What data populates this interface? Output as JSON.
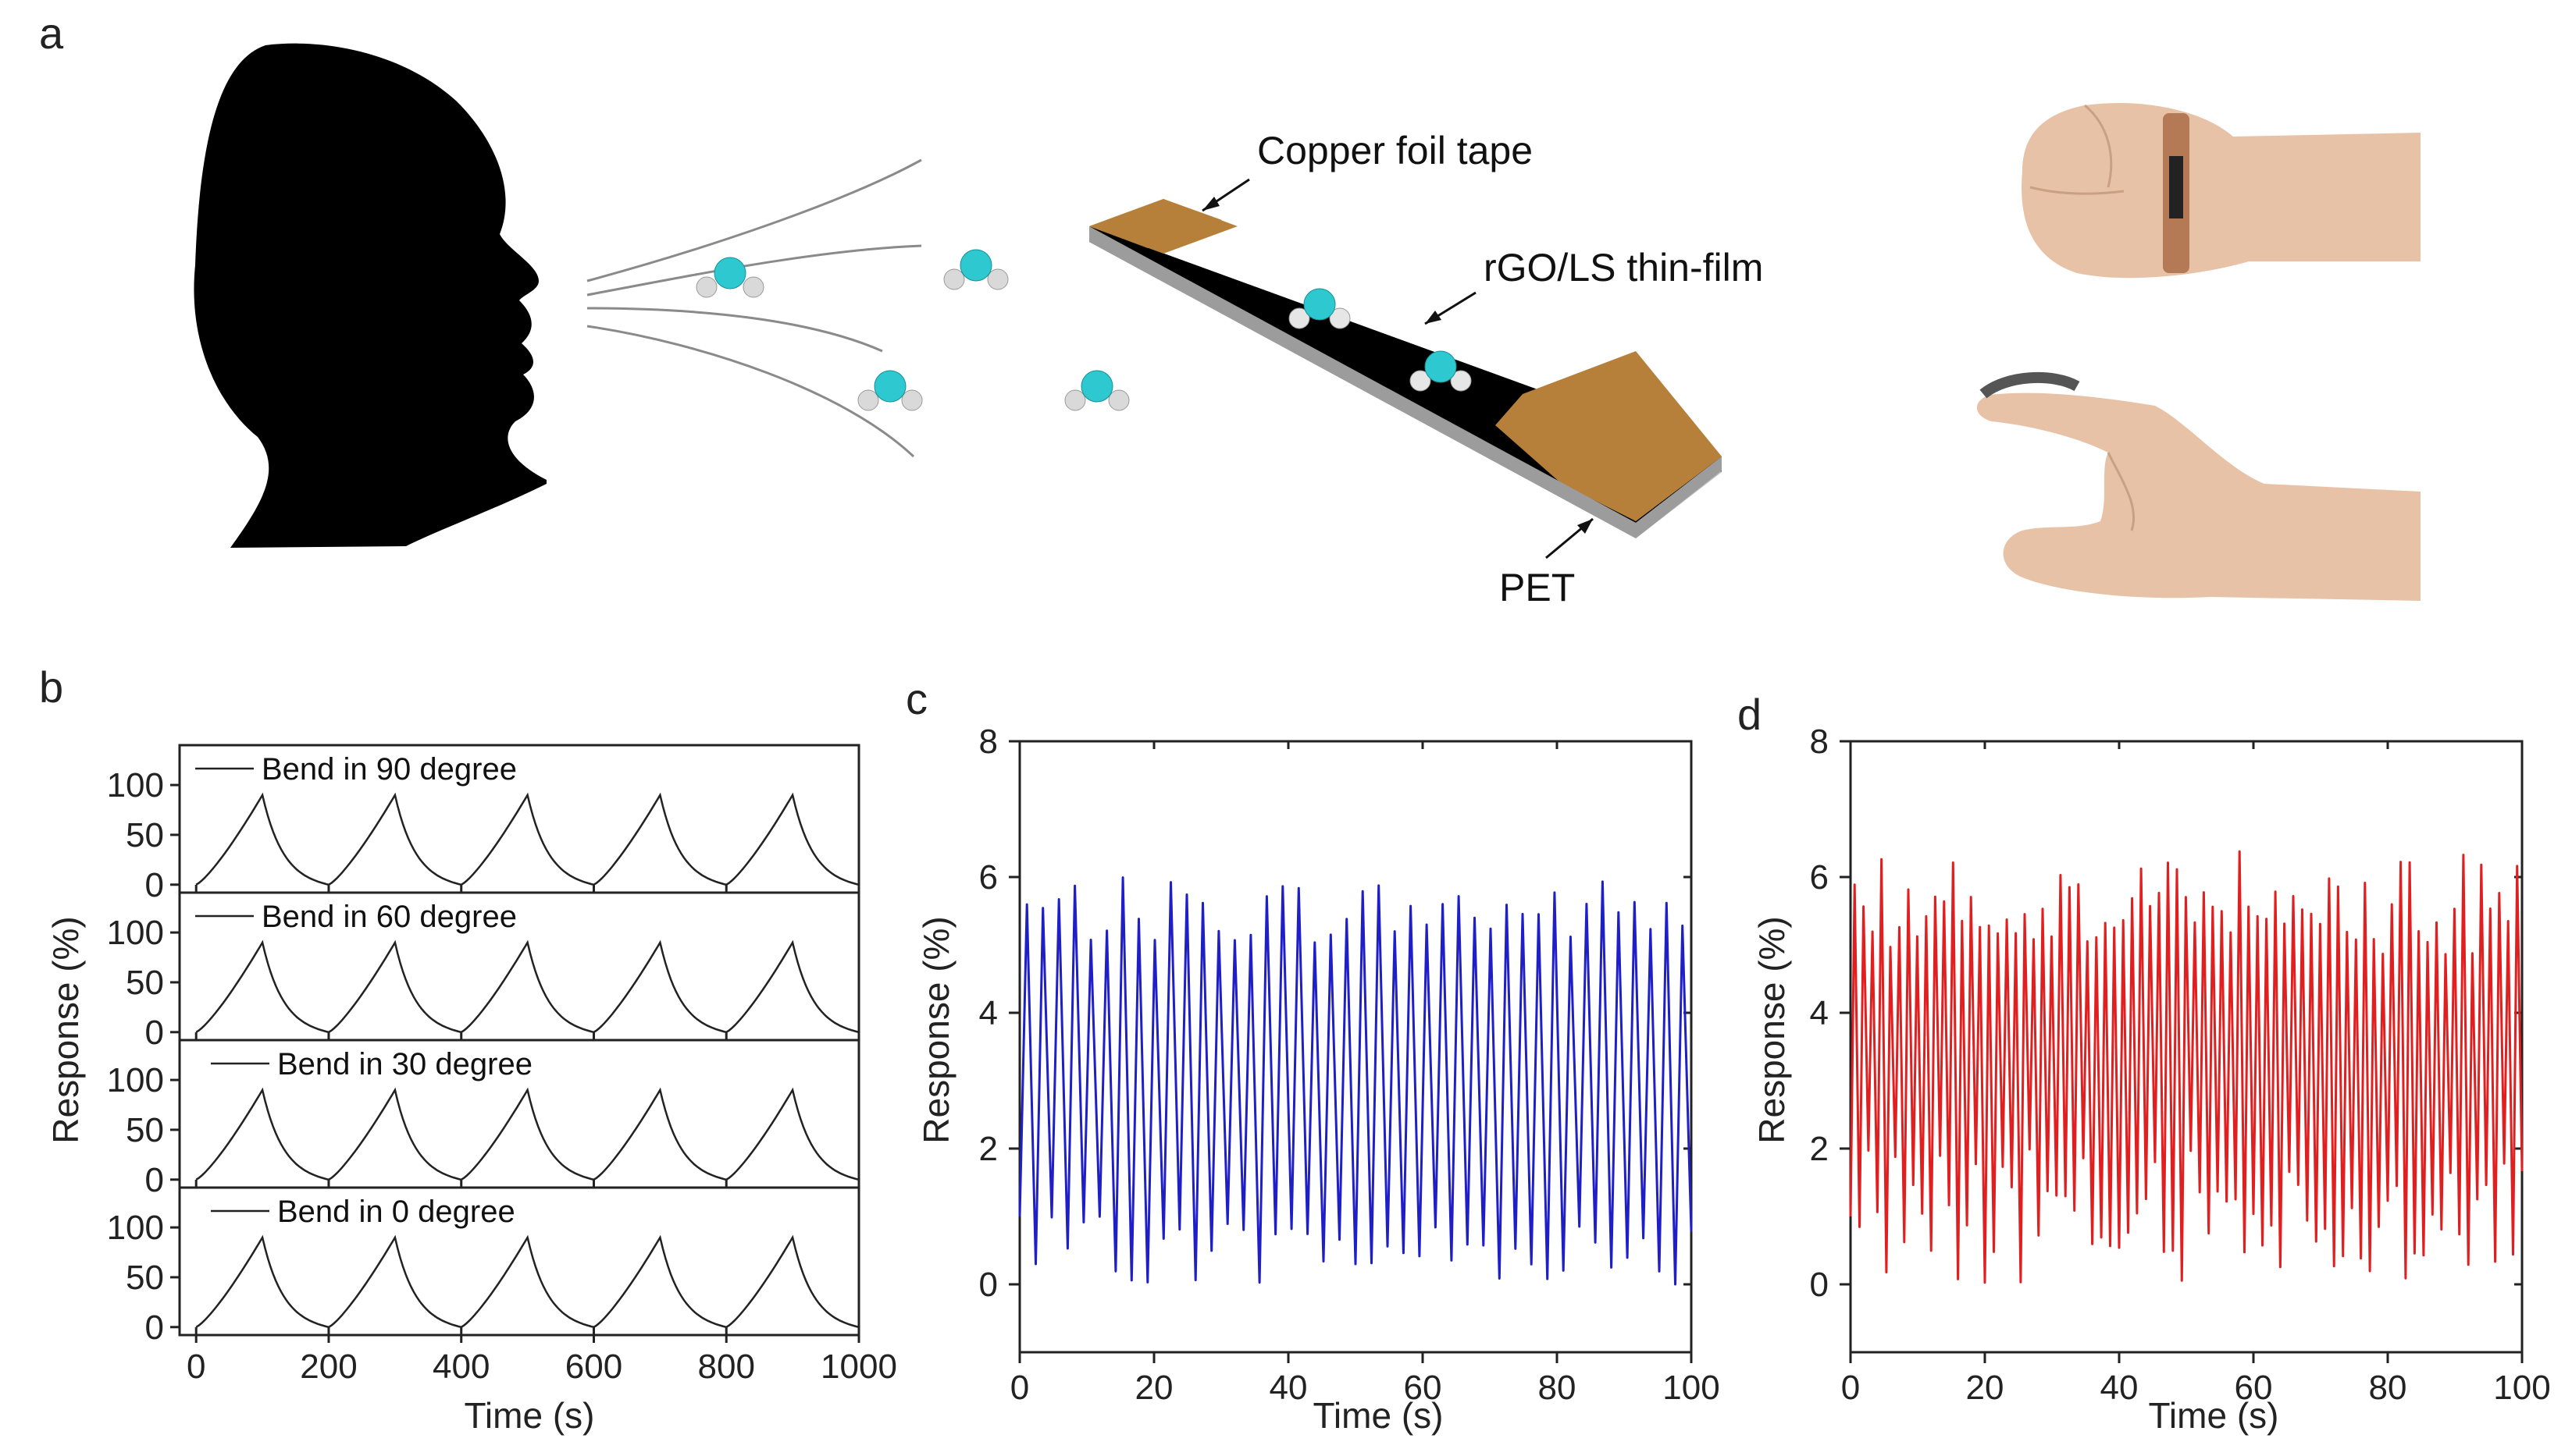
{
  "panels": {
    "a": {
      "letter": "a",
      "labels": {
        "copper": "Copper foil tape",
        "film": "rGO/LS thin-film",
        "pet": "PET"
      },
      "colors": {
        "head": "#000000",
        "molecule_o": "#2ec9d0",
        "molecule_h": "#e8e8e8",
        "tape": "#b7803a",
        "film": "#050505",
        "substrate": "#9a9a9a",
        "skin": "#e7c2a6"
      }
    },
    "b": {
      "letter": "b"
    },
    "c": {
      "letter": "c"
    },
    "d": {
      "letter": "d"
    }
  },
  "chart_data": [
    {
      "id": "b",
      "type": "line",
      "subplots": [
        {
          "legend": "Bend in 90 degree"
        },
        {
          "legend": "Bend in 60 degree"
        },
        {
          "legend": "Bend in 30 degree"
        },
        {
          "legend": "Bend in 0 degree"
        }
      ],
      "peak_times": [
        100,
        300,
        500,
        700,
        900
      ],
      "cycle_period": 200,
      "peak_value": 90,
      "xlim": [
        -25,
        1000
      ],
      "ylim": [
        -8,
        140
      ],
      "xticks": [
        0,
        200,
        400,
        600,
        800,
        1000
      ],
      "yticks": [
        0,
        50,
        100
      ],
      "xlabel": "Time (s)",
      "ylabel": "Response (%)",
      "color": "#222222"
    },
    {
      "id": "c",
      "type": "line",
      "xlim": [
        0,
        100
      ],
      "ylim": [
        -1,
        8
      ],
      "xticks": [
        0,
        20,
        40,
        60,
        80,
        100
      ],
      "yticks": [
        0,
        2,
        4,
        6,
        8
      ],
      "xlabel": "Time (s)",
      "ylabel": "Response (%)",
      "cycles": 42,
      "approx_peak_range": [
        5.0,
        6.0
      ],
      "approx_trough_range": [
        0.0,
        1.0
      ],
      "color": "#1f1fc8"
    },
    {
      "id": "d",
      "type": "line",
      "xlim": [
        0,
        100
      ],
      "ylim": [
        -1,
        8
      ],
      "xticks": [
        0,
        20,
        40,
        60,
        80,
        100
      ],
      "yticks": [
        0,
        2,
        4,
        6,
        8
      ],
      "xlabel": "Time (s)",
      "ylabel": "Response (%)",
      "cycles": 75,
      "approx_peak_range": [
        4.8,
        6.4
      ],
      "approx_trough_range": [
        0.0,
        2.0
      ],
      "color": "#e02020"
    }
  ]
}
